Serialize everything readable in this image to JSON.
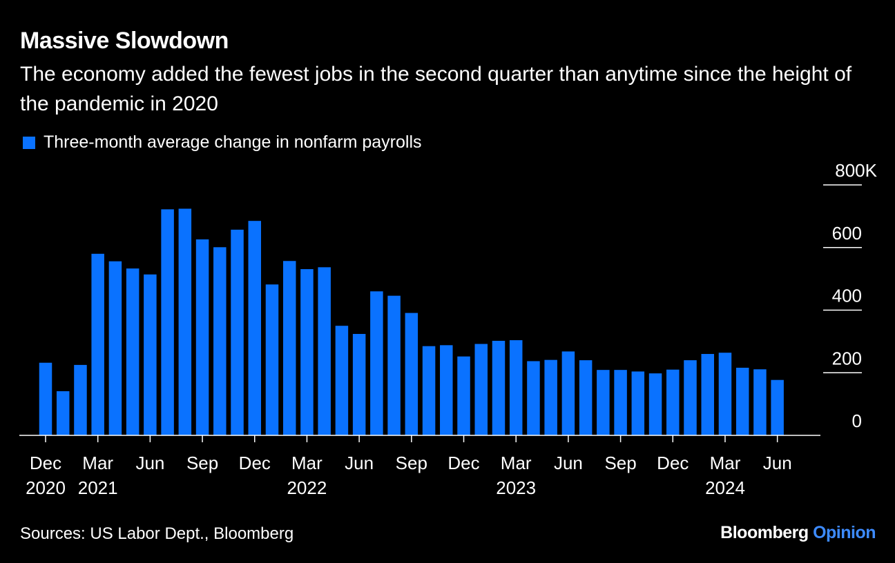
{
  "colors": {
    "background": "#000000",
    "bar": "#0a72ff",
    "text": "#ffffff",
    "brand_accent": "#3d8bff"
  },
  "header": {
    "title": "Massive Slowdown",
    "subtitle": "The economy added the fewest jobs in the second quarter than anytime since the height of the pandemic in 2020"
  },
  "footer": {
    "source": "Sources: US Labor Dept., Bloomberg",
    "brand_main": "Bloomberg",
    "brand_accent": "Opinion"
  },
  "chart_data": {
    "type": "bar",
    "legend": [
      "Three-month average change in nonfarm payrolls"
    ],
    "legend_position": "top-left",
    "y_axis_position": "right",
    "ylim": [
      0,
      800
    ],
    "yticks": [
      0,
      200,
      400,
      600,
      800
    ],
    "ytick_labels": [
      "0",
      "200",
      "400",
      "600",
      "800K"
    ],
    "grid": false,
    "categories": [
      "Dec 2020",
      "Jan 2021",
      "Feb 2021",
      "Mar 2021",
      "Apr 2021",
      "May 2021",
      "Jun 2021",
      "Jul 2021",
      "Aug 2021",
      "Sep 2021",
      "Oct 2021",
      "Nov 2021",
      "Dec 2021",
      "Jan 2022",
      "Feb 2022",
      "Mar 2022",
      "Apr 2022",
      "May 2022",
      "Jun 2022",
      "Jul 2022",
      "Aug 2022",
      "Sep 2022",
      "Oct 2022",
      "Nov 2022",
      "Dec 2022",
      "Jan 2023",
      "Feb 2023",
      "Mar 2023",
      "Apr 2023",
      "May 2023",
      "Jun 2023",
      "Jul 2023",
      "Aug 2023",
      "Sep 2023",
      "Oct 2023",
      "Nov 2023",
      "Dec 2023",
      "Jan 2024",
      "Feb 2024",
      "Mar 2024",
      "Apr 2024",
      "May 2024",
      "Jun 2024"
    ],
    "series": [
      {
        "name": "Three-month average change in nonfarm payrolls",
        "values": [
          232,
          141,
          225,
          580,
          556,
          533,
          514,
          722,
          724,
          626,
          601,
          657,
          685,
          482,
          557,
          531,
          537,
          350,
          324,
          460,
          446,
          391,
          285,
          288,
          252,
          292,
          302,
          304,
          237,
          241,
          268,
          240,
          209,
          209,
          204,
          198,
          210,
          240,
          260,
          264,
          216,
          211,
          177
        ]
      }
    ],
    "xtick_labels": [
      {
        "index": 0,
        "month": "Dec",
        "year": "2020"
      },
      {
        "index": 3,
        "month": "Mar",
        "year": "2021"
      },
      {
        "index": 6,
        "month": "Jun",
        "year": ""
      },
      {
        "index": 9,
        "month": "Sep",
        "year": ""
      },
      {
        "index": 12,
        "month": "Dec",
        "year": ""
      },
      {
        "index": 15,
        "month": "Mar",
        "year": "2022"
      },
      {
        "index": 18,
        "month": "Jun",
        "year": ""
      },
      {
        "index": 21,
        "month": "Sep",
        "year": ""
      },
      {
        "index": 24,
        "month": "Dec",
        "year": ""
      },
      {
        "index": 27,
        "month": "Mar",
        "year": "2023"
      },
      {
        "index": 30,
        "month": "Jun",
        "year": ""
      },
      {
        "index": 33,
        "month": "Sep",
        "year": ""
      },
      {
        "index": 36,
        "month": "Dec",
        "year": ""
      },
      {
        "index": 39,
        "month": "Mar",
        "year": "2024"
      },
      {
        "index": 42,
        "month": "Jun",
        "year": ""
      }
    ]
  }
}
